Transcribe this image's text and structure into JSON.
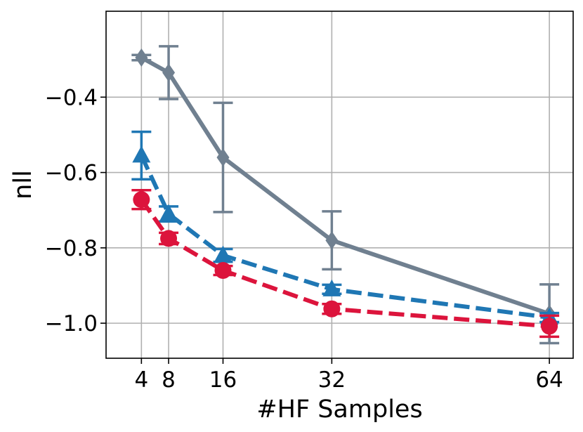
{
  "chart_data": {
    "type": "line",
    "xlabel": "#HF Samples",
    "ylabel": "nll",
    "xlim": [
      -1.2,
      67.5
    ],
    "ylim": [
      -1.093,
      -0.172
    ],
    "grid": true,
    "x_ticks": [
      4,
      8,
      16,
      32,
      64
    ],
    "x_tick_labels": [
      "4",
      "8",
      "16",
      "32",
      "64"
    ],
    "y_ticks": [
      -0.4,
      -0.6,
      -0.8,
      -1.0
    ],
    "y_tick_labels": [
      "−0.4",
      "−0.6",
      "−0.8",
      "−1.0"
    ],
    "series": [
      {
        "color": "#708090",
        "line_style": "solid",
        "marker": "diamond",
        "x": [
          4,
          8,
          16,
          32,
          64
        ],
        "y": [
          -0.295,
          -0.335,
          -0.56,
          -0.78,
          -0.975
        ],
        "err": [
          0.007,
          0.07,
          0.145,
          0.077,
          0.078
        ]
      },
      {
        "color": "#1f77b4",
        "line_style": "dashed",
        "marker": "triangle",
        "x": [
          4,
          8,
          16,
          32,
          64
        ],
        "y": [
          -0.555,
          -0.71,
          -0.82,
          -0.91,
          -0.985
        ],
        "err": [
          0.063,
          0.02,
          0.017,
          0.012,
          0.012
        ]
      },
      {
        "color": "#dc143c",
        "line_style": "dashed",
        "marker": "circle",
        "x": [
          4,
          8,
          16,
          32,
          64
        ],
        "y": [
          -0.672,
          -0.775,
          -0.86,
          -0.962,
          -1.008
        ],
        "err": [
          0.025,
          0.015,
          0.012,
          0.013,
          0.028
        ]
      }
    ]
  }
}
